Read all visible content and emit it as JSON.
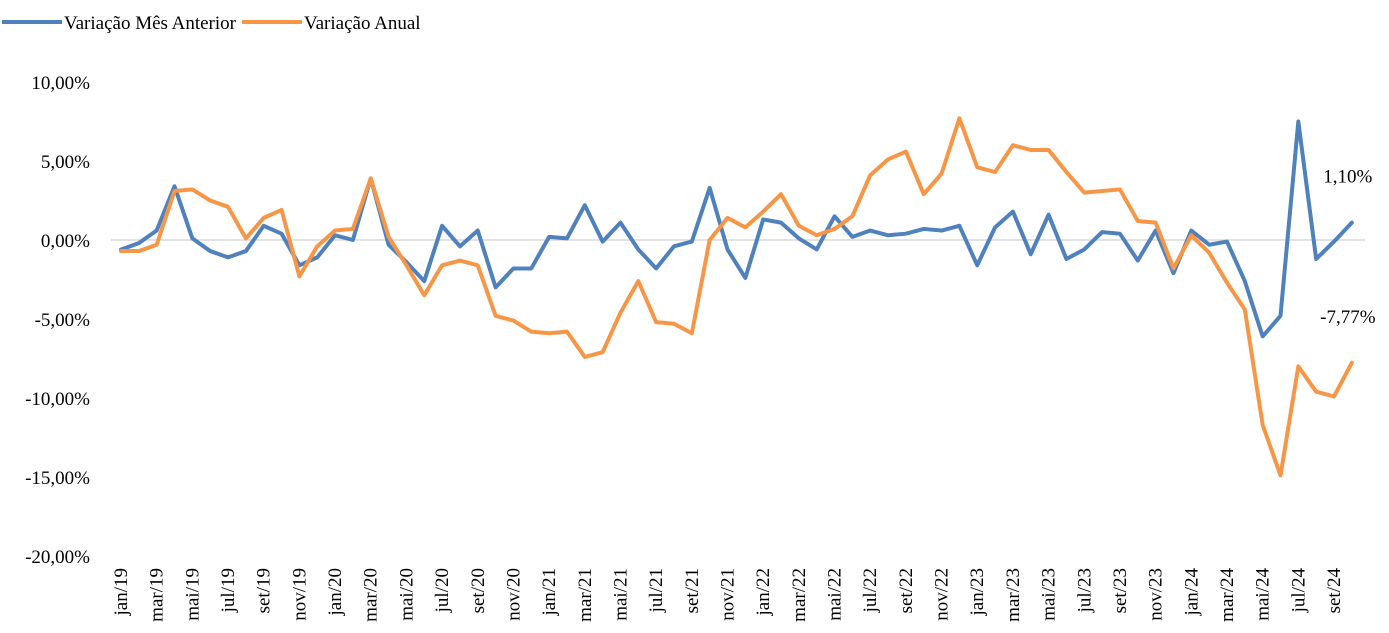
{
  "chart_data": {
    "type": "line",
    "categories": [
      "jan/19",
      null,
      "mar/19",
      null,
      "mai/19",
      null,
      "jul/19",
      null,
      "set/19",
      null,
      "nov/19",
      null,
      "jan/20",
      null,
      "mar/20",
      null,
      "mai/20",
      null,
      "jul/20",
      null,
      "set/20",
      null,
      "nov/20",
      null,
      "jan/21",
      null,
      "mar/21",
      null,
      "mai/21",
      null,
      "jul/21",
      null,
      "set/21",
      null,
      "nov/21",
      null,
      "jan/22",
      null,
      "mar/22",
      null,
      "mai/22",
      null,
      "jul/22",
      null,
      "set/22",
      null,
      "nov/22",
      null,
      "jan/23",
      null,
      "mar/23",
      null,
      "mai/23",
      null,
      "jul/23",
      null,
      "set/23",
      null,
      "nov/23",
      null,
      "jan/24",
      null,
      "mar/24",
      null,
      "mai/24",
      null,
      "jul/24",
      null,
      "set/24",
      null
    ],
    "series": [
      {
        "name": "Variação Mês Anterior",
        "color": "#4f81bd",
        "values": [
          -0.6,
          -0.2,
          0.6,
          3.4,
          0.1,
          -0.7,
          -1.1,
          -0.7,
          0.9,
          0.4,
          -1.6,
          -1.1,
          0.3,
          0.0,
          3.9,
          -0.3,
          -1.4,
          -2.6,
          0.9,
          -0.4,
          0.6,
          -3.0,
          -1.8,
          -1.8,
          0.2,
          0.1,
          2.2,
          -0.1,
          1.1,
          -0.6,
          -1.8,
          -0.4,
          -0.1,
          3.3,
          -0.6,
          -2.4,
          1.3,
          1.1,
          0.1,
          -0.6,
          1.5,
          0.2,
          0.6,
          0.3,
          0.4,
          0.7,
          0.6,
          0.9,
          -1.6,
          0.8,
          1.8,
          -0.9,
          1.6,
          -1.2,
          -0.6,
          0.5,
          0.4,
          -1.3,
          0.6,
          -2.1,
          0.6,
          -0.3,
          -0.1,
          -2.6,
          -6.1,
          -4.8,
          7.5,
          -1.2,
          -0.1,
          1.1
        ],
        "value_labels": [
          null,
          null,
          null,
          null,
          null,
          null,
          null,
          null,
          null,
          null,
          null,
          null,
          null,
          null,
          null,
          null,
          null,
          null,
          null,
          null,
          null,
          null,
          null,
          null,
          null,
          null,
          null,
          null,
          null,
          null,
          null,
          null,
          null,
          null,
          null,
          null,
          null,
          null,
          null,
          null,
          null,
          null,
          null,
          null,
          null,
          null,
          null,
          null,
          null,
          null,
          null,
          null,
          null,
          null,
          null,
          null,
          null,
          null,
          null,
          null,
          null,
          null,
          null,
          null,
          null,
          null,
          null,
          null,
          null,
          "1,10%"
        ]
      },
      {
        "name": "Variação Anual",
        "color": "#f79646",
        "values": [
          -0.7,
          -0.7,
          -0.3,
          3.1,
          3.2,
          2.5,
          2.1,
          0.1,
          1.4,
          1.9,
          -2.3,
          -0.4,
          0.6,
          0.7,
          3.9,
          0.2,
          -1.6,
          -3.5,
          -1.6,
          -1.3,
          -1.6,
          -4.8,
          -5.1,
          -5.8,
          -5.9,
          -5.8,
          -7.4,
          -7.1,
          -4.6,
          -2.6,
          -5.2,
          -5.3,
          -5.9,
          0.0,
          1.4,
          0.8,
          1.8,
          2.9,
          0.9,
          0.3,
          0.7,
          1.5,
          4.1,
          5.1,
          5.6,
          2.9,
          4.2,
          7.7,
          4.6,
          4.3,
          6.0,
          5.7,
          5.7,
          4.3,
          3.0,
          3.1,
          3.2,
          1.2,
          1.1,
          -1.8,
          0.3,
          -0.8,
          -2.7,
          -4.4,
          -11.7,
          -14.9,
          -8.0,
          -9.6,
          -9.9,
          -7.77
        ],
        "value_labels": [
          null,
          null,
          null,
          null,
          null,
          null,
          null,
          null,
          null,
          null,
          null,
          null,
          null,
          null,
          null,
          null,
          null,
          null,
          null,
          null,
          null,
          null,
          null,
          null,
          null,
          null,
          null,
          null,
          null,
          null,
          null,
          null,
          null,
          null,
          null,
          null,
          null,
          null,
          null,
          null,
          null,
          null,
          null,
          null,
          null,
          null,
          null,
          null,
          null,
          null,
          null,
          null,
          null,
          null,
          null,
          null,
          null,
          null,
          null,
          null,
          null,
          null,
          null,
          null,
          null,
          null,
          null,
          null,
          null,
          "-7,77%"
        ]
      }
    ],
    "ylim": [
      -20,
      10
    ],
    "yticks": [
      {
        "value": -20,
        "label": "-20,00%"
      },
      {
        "value": -15,
        "label": "-15,00%"
      },
      {
        "value": -10,
        "label": "-10,00%"
      },
      {
        "value": -5,
        "label": "-5,00%"
      },
      {
        "value": 0,
        "label": "0,00%"
      },
      {
        "value": 5,
        "label": "5,00%"
      },
      {
        "value": 10,
        "label": "10,00%"
      }
    ],
    "grid": false,
    "legend": "top-left"
  }
}
